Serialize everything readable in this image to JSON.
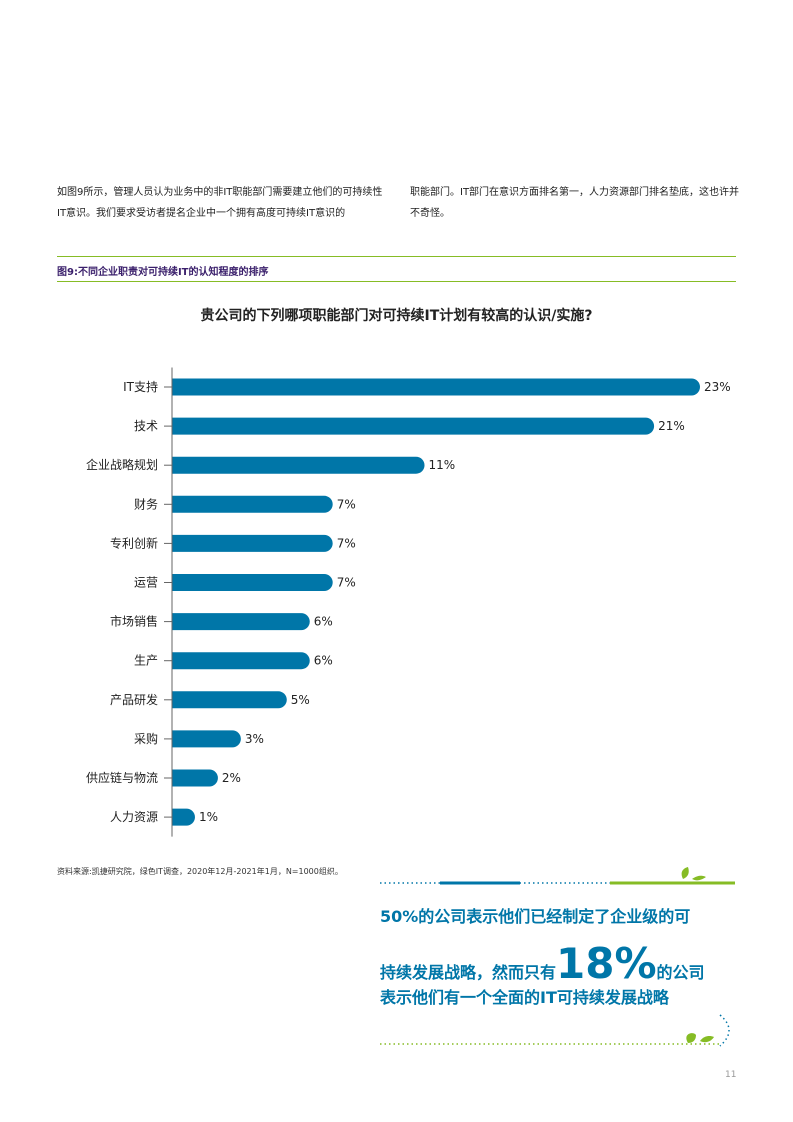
{
  "intro": {
    "left": "如图9所示，管理人员认为业务中的非IT职能部门需要建立他们的可持续性IT意识。我们要求受访者提名企业中一个拥有高度可持续IT意识的",
    "right": "职能部门。IT部门在意识方面排名第一，人力资源部门排名垫底，这也许并不奇怪。"
  },
  "figure_title": "图9:不同企业职责对可持续IT的认知程度的排序",
  "chart_question": "贵公司的下列哪项职能部门对可持续IT计划有较高的认识/实施?",
  "chart_data": {
    "type": "bar",
    "orientation": "horizontal",
    "title": "贵公司的下列哪项职能部门对可持续IT计划有较高的认识/实施?",
    "categories": [
      "IT支持",
      "技术",
      "企业战略规划",
      "财务",
      "专利创新",
      "运营",
      "市场销售",
      "生产",
      "产品研发",
      "采购",
      "供应链与物流",
      "人力资源"
    ],
    "values": [
      23,
      21,
      11,
      7,
      7,
      7,
      6,
      6,
      5,
      3,
      2,
      1
    ],
    "labels": [
      "23%",
      "21%",
      "11%",
      "7%",
      "7%",
      "7%",
      "6%",
      "6%",
      "5%",
      "3%",
      "2%",
      "1%"
    ],
    "unit": "%",
    "xlim": [
      0,
      23
    ],
    "bar_color": "#0076a8",
    "xlabel": "",
    "ylabel": ""
  },
  "source": "资料来源:凯捷研究院，绿色IT调查，2020年12月-2021年1月，N=1000组织。",
  "callout": {
    "line1": "50%的公司表示他们已经制定了企业级的可",
    "line2_a": "持续发展战略，然而只有",
    "line2_big": "18%",
    "line2_b": "的公司",
    "line3": "表示他们有一个全面的IT可持续发展战略"
  },
  "page_number": "11",
  "colors": {
    "accent_green": "#86bc25",
    "brand_blue": "#0076a8",
    "title_purple": "#3a1f6b"
  }
}
